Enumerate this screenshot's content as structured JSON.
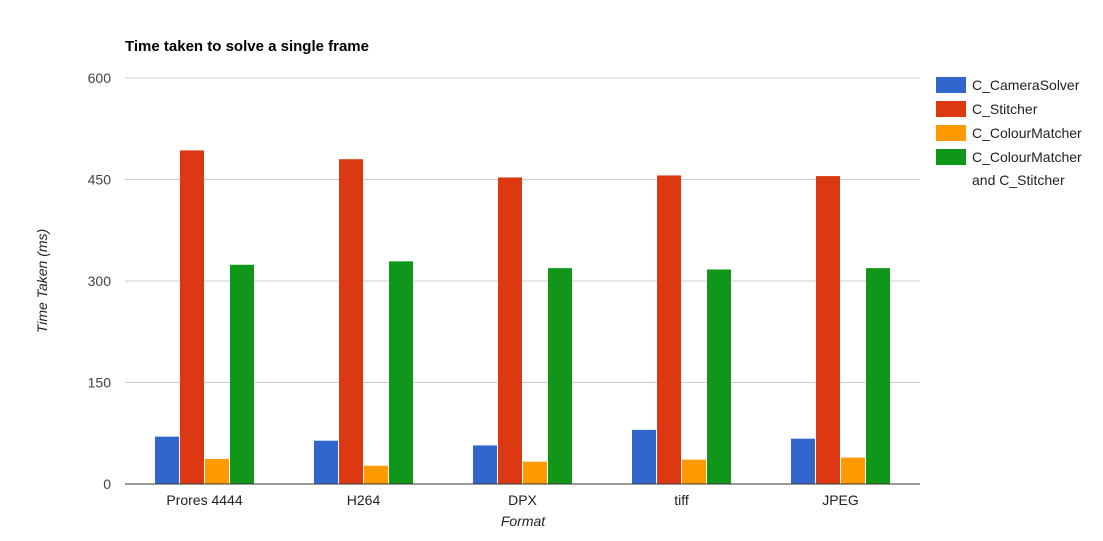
{
  "chart_data": {
    "type": "bar",
    "title": "Time taken to solve a single frame",
    "xlabel": "Format",
    "ylabel": "Time Taken (ms)",
    "categories": [
      "Prores 4444",
      "H264",
      "DPX",
      "tiff",
      "JPEG"
    ],
    "ylim": [
      0,
      600
    ],
    "yticks": [
      "0",
      "150",
      "300",
      "450",
      "600"
    ],
    "ytick_values": [
      0,
      150,
      300,
      450,
      600
    ],
    "grid": true,
    "legend_position": "right",
    "series": [
      {
        "name": "C_CameraSolver",
        "color": "#3366cc",
        "values": [
          70,
          64,
          57,
          80,
          67
        ]
      },
      {
        "name": "C_Stitcher",
        "color": "#dc3912",
        "values": [
          493,
          480,
          453,
          456,
          455
        ]
      },
      {
        "name": "C_ColourMatcher",
        "color": "#ff9900",
        "values": [
          37,
          27,
          33,
          36,
          39
        ]
      },
      {
        "name": "C_ColourMatcher and C_Stitcher",
        "legend_lines": [
          "C_ColourMatcher",
          "and C_Stitcher"
        ],
        "color": "#109618",
        "values": [
          324,
          329,
          319,
          317,
          319
        ]
      }
    ]
  }
}
